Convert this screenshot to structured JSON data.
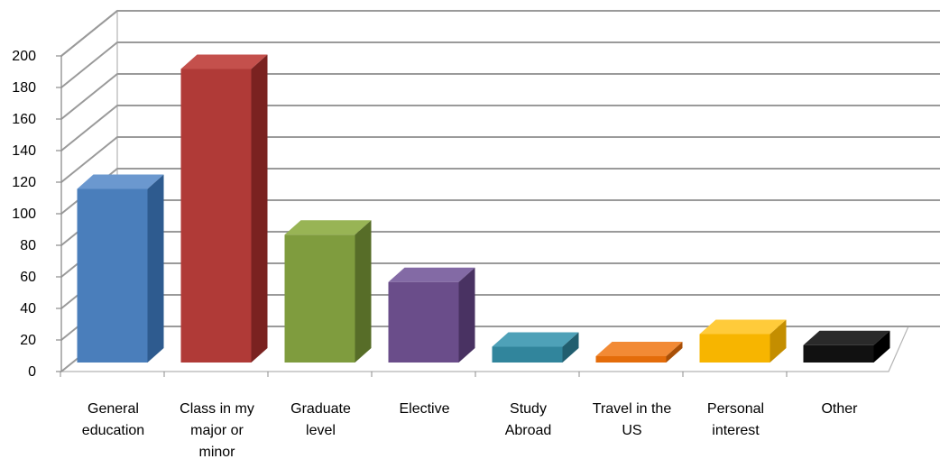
{
  "chart_data": {
    "type": "bar",
    "three_d": true,
    "title": "",
    "xlabel": "",
    "ylabel": "",
    "ylim": [
      0,
      200
    ],
    "yticks": [
      "0",
      "20",
      "40",
      "60",
      "80",
      "100",
      "120",
      "140",
      "160",
      "180",
      "200"
    ],
    "grid": true,
    "legend": "none",
    "categories": [
      [
        "General",
        "education"
      ],
      [
        "Class in my",
        "major or",
        "minor"
      ],
      [
        "Graduate",
        "level"
      ],
      [
        "Elective"
      ],
      [
        "Study",
        "Abroad"
      ],
      [
        "Travel in the",
        "US"
      ],
      [
        "Personal",
        "interest"
      ],
      [
        "Other"
      ]
    ],
    "series": [
      {
        "values": [
          110,
          186,
          81,
          51,
          10,
          4,
          18,
          11
        ]
      }
    ],
    "colors": [
      {
        "front": "#4a7ebb",
        "side": "#2e5b8f",
        "top": "#6b98cf"
      },
      {
        "front": "#b03a37",
        "side": "#7a2220",
        "top": "#c4504c"
      },
      {
        "front": "#7f9c3e",
        "side": "#576d28",
        "top": "#98b455"
      },
      {
        "front": "#6a4d8a",
        "side": "#493262",
        "top": "#836aa5"
      },
      {
        "front": "#31859c",
        "side": "#215e6f",
        "top": "#4ea1b8"
      },
      {
        "front": "#e46c0a",
        "side": "#a84f07",
        "top": "#f28a35"
      },
      {
        "front": "#f7b500",
        "side": "#c48e00",
        "top": "#ffcb3a"
      },
      {
        "front": "#111111",
        "side": "#000000",
        "top": "#2a2a2a"
      }
    ]
  }
}
